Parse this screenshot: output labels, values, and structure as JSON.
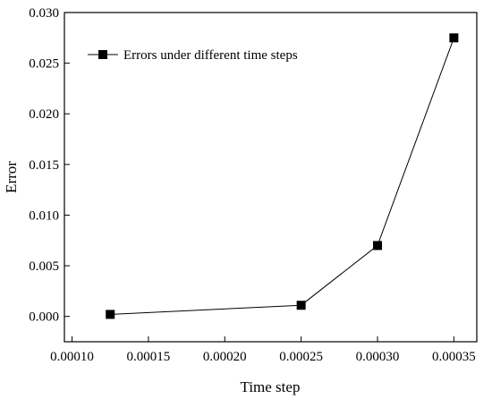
{
  "chart_data": {
    "type": "line",
    "title": "",
    "xlabel": "Time step",
    "ylabel": "Error",
    "xlim": [
      9.5e-05,
      0.000365
    ],
    "ylim": [
      -0.0025,
      0.03
    ],
    "xticks": [
      0.0001,
      0.00015,
      0.0002,
      0.00025,
      0.0003,
      0.00035
    ],
    "xtick_labels": [
      "0.00010",
      "0.00015",
      "0.00020",
      "0.00025",
      "0.00030",
      "0.00035"
    ],
    "yticks": [
      0.0,
      0.005,
      0.01,
      0.015,
      0.02,
      0.025,
      0.03
    ],
    "ytick_labels": [
      "0.000",
      "0.005",
      "0.010",
      "0.015",
      "0.020",
      "0.025",
      "0.030"
    ],
    "grid": false,
    "legend": {
      "position": "top-left",
      "entries": [
        "Errors under different time steps"
      ]
    },
    "series": [
      {
        "name": "Errors under different time steps",
        "marker": "square",
        "color": "#000000",
        "x": [
          0.000125,
          0.00025,
          0.0003,
          0.00035
        ],
        "y": [
          0.0002,
          0.0011,
          0.007,
          0.0275
        ]
      }
    ]
  }
}
